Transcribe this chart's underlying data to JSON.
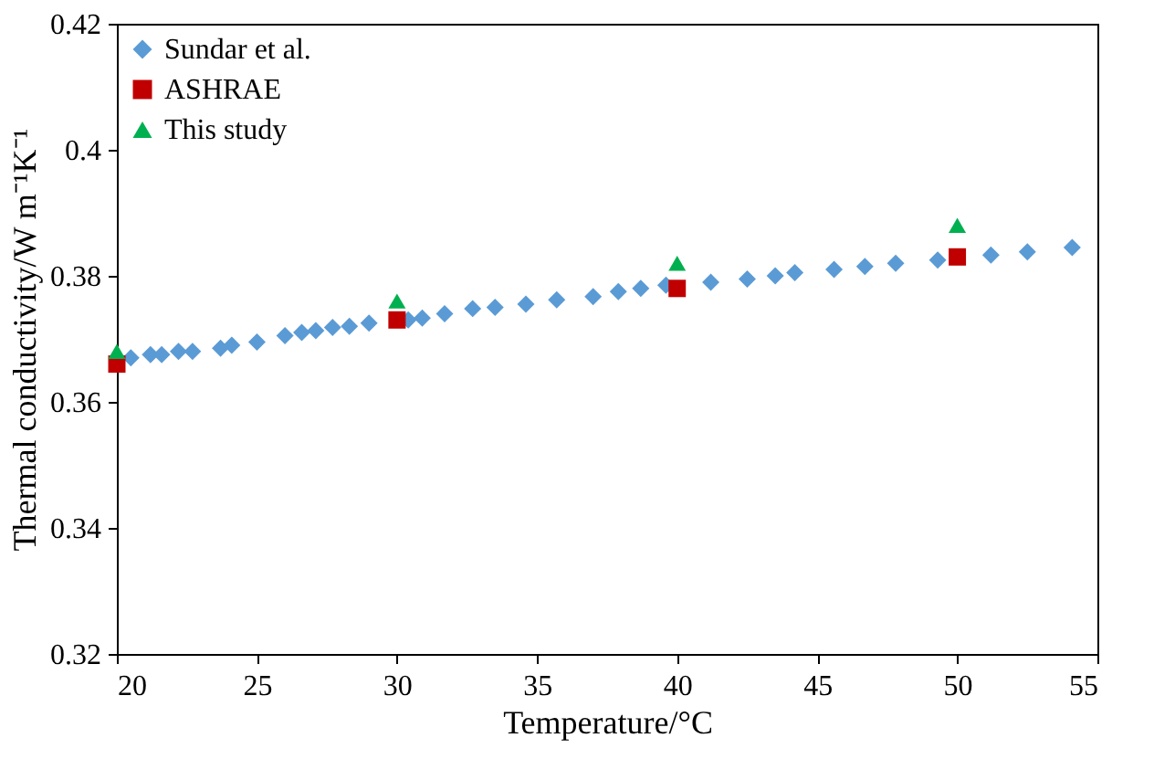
{
  "chart_data": {
    "type": "scatter",
    "xlabel": "Temperature/°C",
    "ylabel": "Thermal conductivity/W m⁻¹K⁻¹",
    "xlim": [
      20,
      55
    ],
    "xticks": [
      20,
      25,
      30,
      35,
      40,
      45,
      50,
      55
    ],
    "ylim": [
      0.32,
      0.42
    ],
    "yticks": [
      0.32,
      0.34,
      0.36,
      0.38,
      0.4,
      0.42
    ],
    "grid": false,
    "legend": "top left",
    "series": [
      {
        "name": "Sundar et al.",
        "color": "#5b9bd5",
        "marker": "diamond",
        "x": [
          20.5,
          21.2,
          21.6,
          22.2,
          22.7,
          23.7,
          24.1,
          25.0,
          26.0,
          26.6,
          27.1,
          27.7,
          28.3,
          29.0,
          30.4,
          30.9,
          31.7,
          32.7,
          33.5,
          34.6,
          35.7,
          37.0,
          37.9,
          38.7,
          39.6,
          41.2,
          42.5,
          43.5,
          44.2,
          45.6,
          46.7,
          47.8,
          49.3,
          51.2,
          52.5,
          54.1
        ],
        "values": [
          0.367,
          0.3675,
          0.3675,
          0.368,
          0.368,
          0.3685,
          0.369,
          0.3695,
          0.3705,
          0.371,
          0.3713,
          0.3718,
          0.372,
          0.3725,
          0.373,
          0.3733,
          0.374,
          0.3748,
          0.375,
          0.3755,
          0.3762,
          0.3767,
          0.3775,
          0.378,
          0.3785,
          0.379,
          0.3795,
          0.38,
          0.3805,
          0.381,
          0.3815,
          0.382,
          0.3825,
          0.3833,
          0.3838,
          0.3845
        ]
      },
      {
        "name": "ASHRAE",
        "color": "#c00000",
        "marker": "square",
        "x": [
          20,
          30,
          40,
          50
        ],
        "values": [
          0.366,
          0.373,
          0.378,
          0.383
        ]
      },
      {
        "name": "This study",
        "color": "#00b050",
        "marker": "triangle",
        "x": [
          20,
          30,
          40,
          50
        ],
        "values": [
          0.368,
          0.376,
          0.382,
          0.388
        ]
      }
    ]
  }
}
